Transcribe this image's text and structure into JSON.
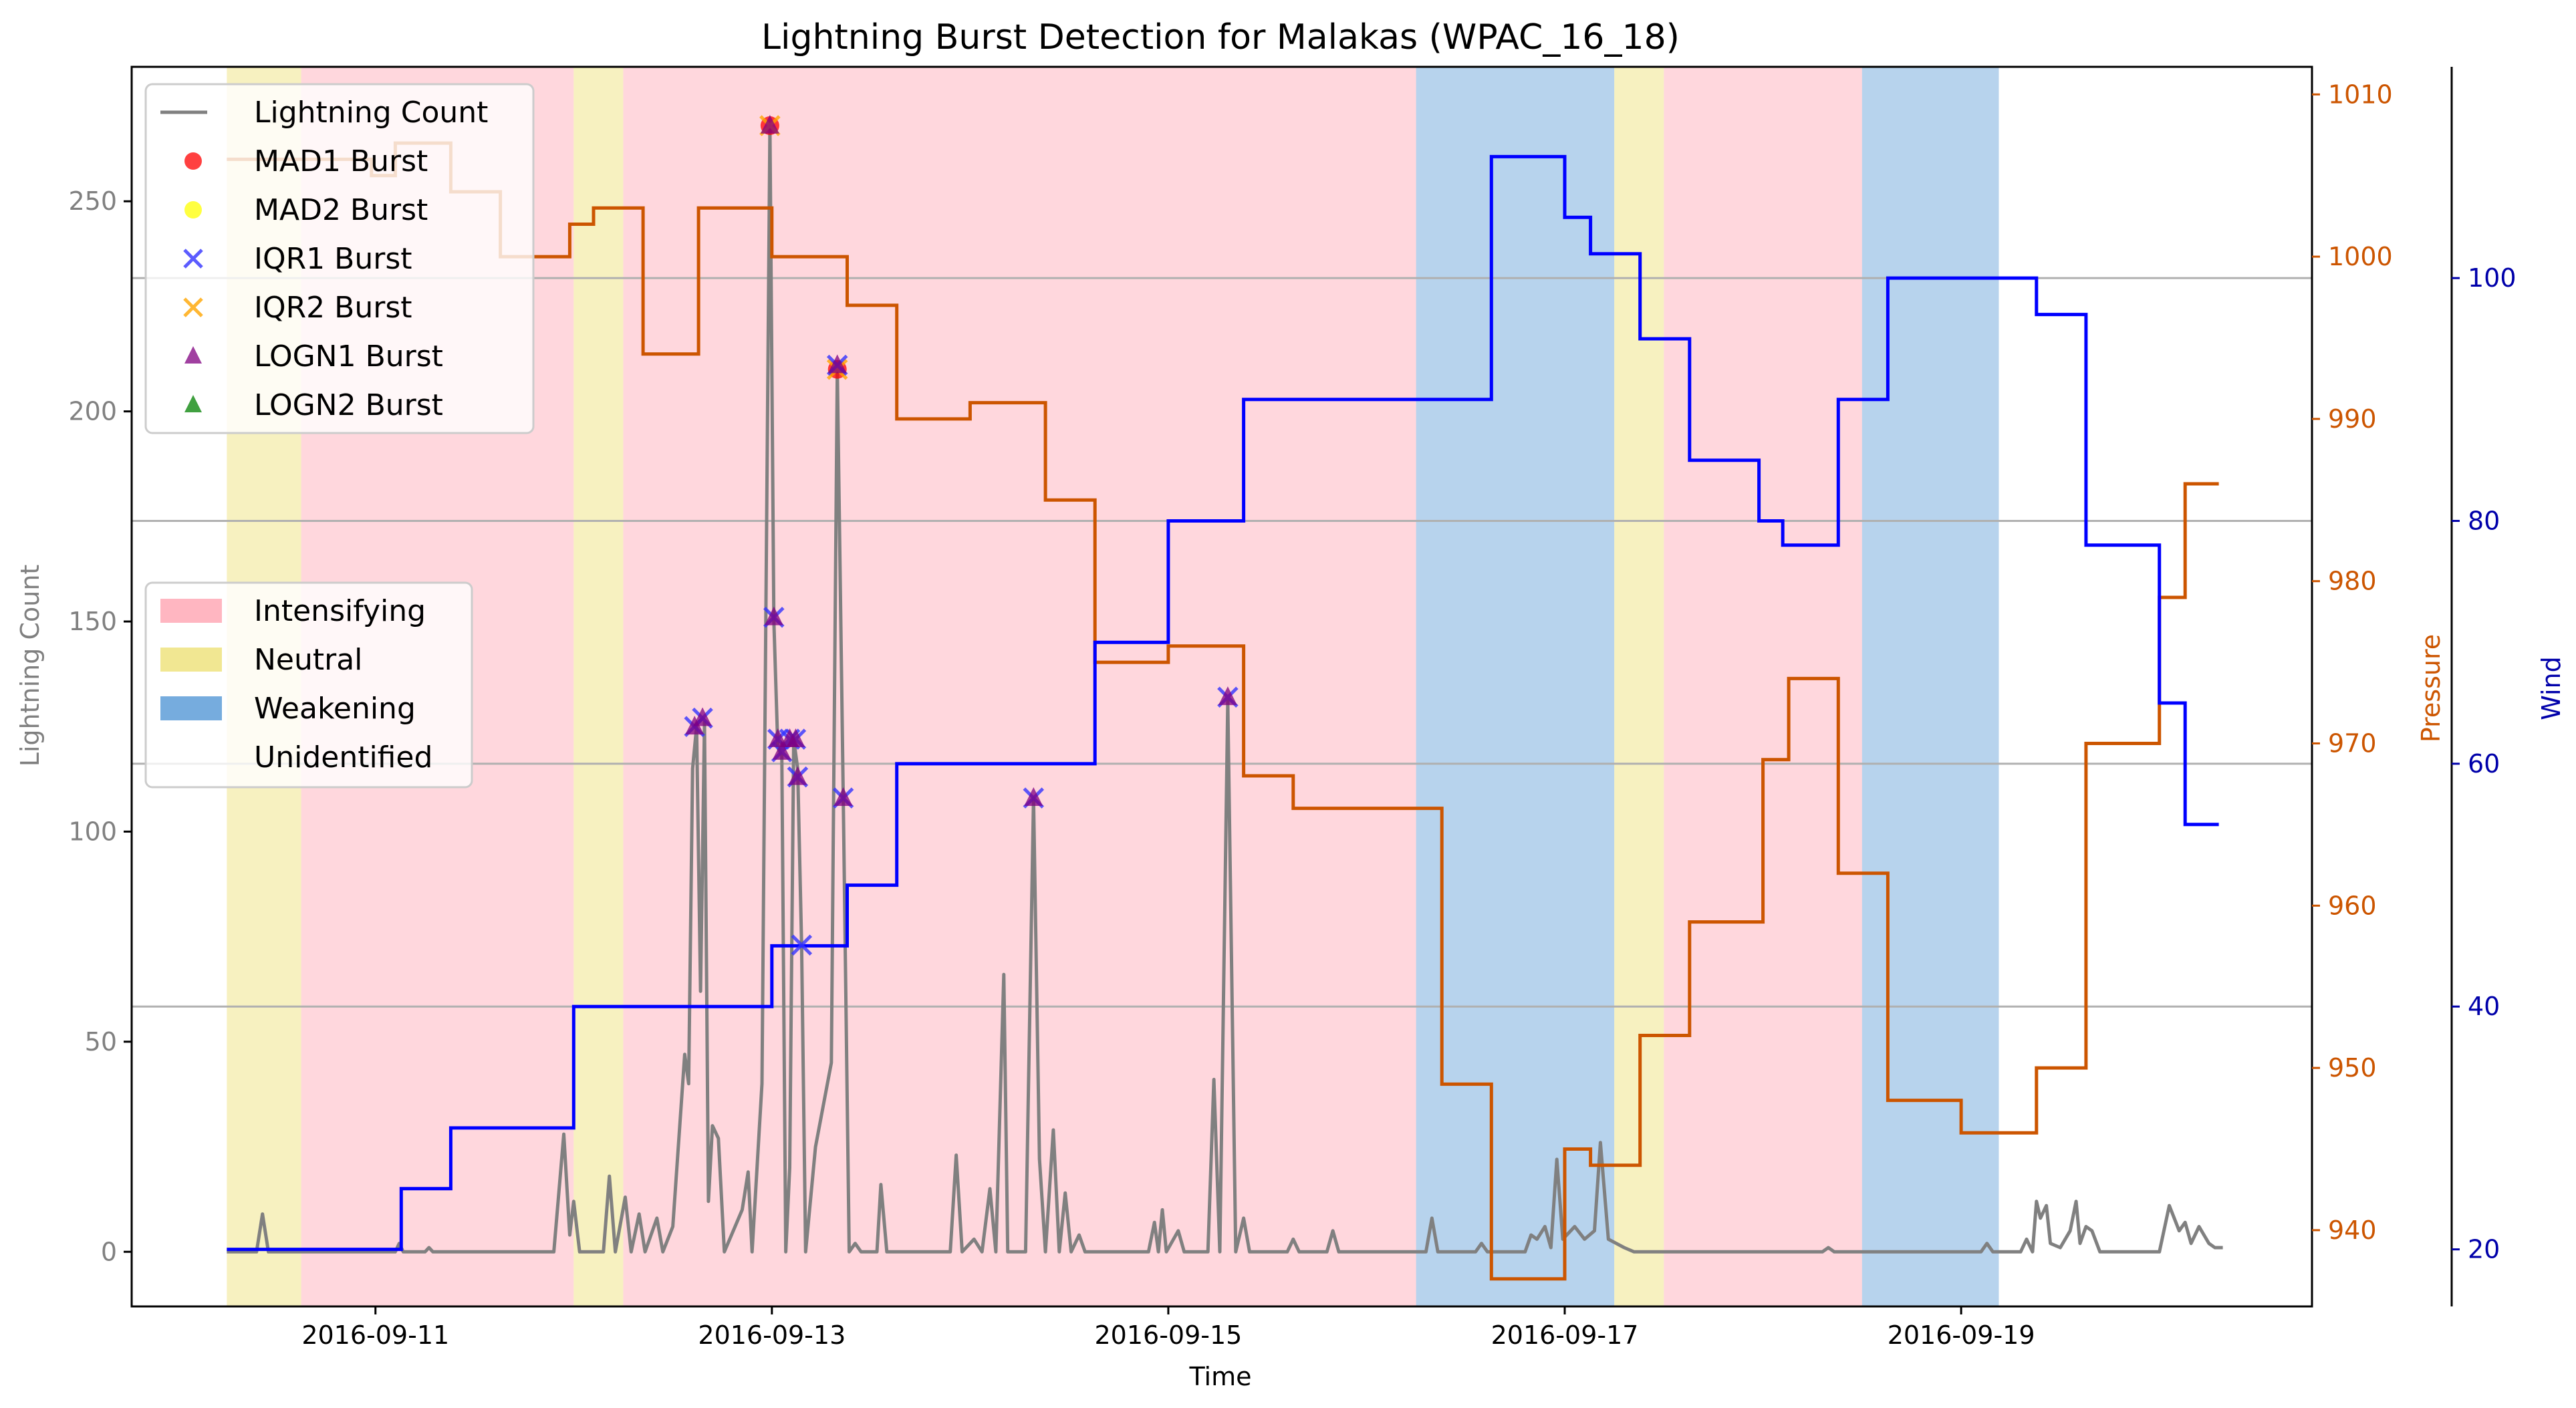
{
  "chart_data": {
    "type": "line",
    "title": "Lightning Burst Detection for Malakas (WPAC_16_18)",
    "xlabel": "Time",
    "ylabel_left": "Lightning Count",
    "ylabel_right1": "Pressure",
    "ylabel_right2": "Wind",
    "colors": {
      "lightning": "#808080",
      "pressure": "#cc5500",
      "wind": "#0000ff",
      "intensifying": "#ffb6c1",
      "neutral": "#f0e68c",
      "weakening": "#6fa8dc",
      "mad1": "#ff0000",
      "mad2": "#ffff00",
      "iqr1": "#3333ff",
      "iqr2": "#ffa500",
      "logn1": "#800080",
      "logn2": "#008000"
    },
    "x_ticks": [
      {
        "t": 1,
        "label": "2016-09-11"
      },
      {
        "t": 3,
        "label": "2016-09-13"
      },
      {
        "t": 5,
        "label": "2016-09-15"
      },
      {
        "t": 7,
        "label": "2016-09-17"
      },
      {
        "t": 9,
        "label": "2016-09-19"
      }
    ],
    "xlim": [
      -0.23,
      10.77
    ],
    "ylim_left": [
      -13,
      282
    ],
    "y_ticks_left": [
      0,
      50,
      100,
      150,
      200,
      250
    ],
    "ylim_pressure": [
      935.3,
      1011.7
    ],
    "y_ticks_pressure": [
      940,
      950,
      960,
      970,
      980,
      990,
      1000,
      1010
    ],
    "ylim_wind": [
      15.3,
      117.4
    ],
    "y_ticks_wind": [
      20,
      40,
      60,
      80,
      100
    ],
    "wind_gridlines": [
      40,
      60,
      80,
      100
    ],
    "legend_markers": {
      "placement": "upper left",
      "entries": [
        {
          "key": "line",
          "label": "Lightning Count"
        },
        {
          "key": "mad1",
          "label": "MAD1 Burst"
        },
        {
          "key": "mad2",
          "label": "MAD2 Burst"
        },
        {
          "key": "iqr1",
          "label": "IQR1 Burst"
        },
        {
          "key": "iqr2",
          "label": "IQR2 Burst"
        },
        {
          "key": "logn1",
          "label": "LOGN1 Burst"
        },
        {
          "key": "logn2",
          "label": "LOGN2 Burst"
        }
      ]
    },
    "legend_phases": {
      "placement": "center left",
      "entries": [
        {
          "key": "intensifying",
          "label": "Intensifying"
        },
        {
          "key": "neutral",
          "label": "Neutral"
        },
        {
          "key": "weakening",
          "label": "Weakening"
        },
        {
          "key": "none",
          "label": "Unidentified"
        }
      ]
    },
    "phases": [
      {
        "start": 0.25,
        "end": 0.625,
        "phase": "neutral"
      },
      {
        "start": 0.625,
        "end": 2.0,
        "phase": "intensifying"
      },
      {
        "start": 2.0,
        "end": 2.25,
        "phase": "neutral"
      },
      {
        "start": 2.25,
        "end": 6.25,
        "phase": "intensifying"
      },
      {
        "start": 6.25,
        "end": 7.25,
        "phase": "weakening"
      },
      {
        "start": 7.25,
        "end": 7.5,
        "phase": "neutral"
      },
      {
        "start": 7.5,
        "end": 8.5,
        "phase": "intensifying"
      },
      {
        "start": 8.5,
        "end": 9.19,
        "phase": "weakening"
      }
    ],
    "pressure": [
      [
        0.25,
        1006
      ],
      [
        0.98,
        1005
      ],
      [
        1.1,
        1007
      ],
      [
        1.38,
        1004
      ],
      [
        1.63,
        1000
      ],
      [
        1.98,
        1002
      ],
      [
        2.1,
        1003
      ],
      [
        2.35,
        994
      ],
      [
        2.63,
        1003
      ],
      [
        3.0,
        1000
      ],
      [
        3.38,
        997
      ],
      [
        3.63,
        990
      ],
      [
        4.0,
        991
      ],
      [
        4.38,
        985
      ],
      [
        4.63,
        975
      ],
      [
        5.0,
        976
      ],
      [
        5.38,
        968
      ],
      [
        5.63,
        966
      ],
      [
        6.38,
        949
      ],
      [
        6.63,
        937
      ],
      [
        7.0,
        945
      ],
      [
        7.13,
        944
      ],
      [
        7.38,
        952
      ],
      [
        7.63,
        959
      ],
      [
        8.0,
        969
      ],
      [
        8.13,
        974
      ],
      [
        8.38,
        962
      ],
      [
        8.63,
        948
      ],
      [
        9.0,
        946
      ],
      [
        9.38,
        950
      ],
      [
        9.63,
        970
      ],
      [
        10.0,
        979
      ],
      [
        10.13,
        986
      ],
      [
        10.3,
        986
      ]
    ],
    "wind": [
      [
        0.25,
        20
      ],
      [
        1.13,
        25
      ],
      [
        1.38,
        30
      ],
      [
        1.88,
        30
      ],
      [
        2.0,
        40
      ],
      [
        2.6,
        40
      ],
      [
        2.9,
        40
      ],
      [
        3.0,
        45
      ],
      [
        3.38,
        50
      ],
      [
        3.63,
        60
      ],
      [
        4.38,
        60
      ],
      [
        4.63,
        70
      ],
      [
        5.0,
        80
      ],
      [
        5.38,
        90
      ],
      [
        6.38,
        90
      ],
      [
        6.63,
        110
      ],
      [
        7.0,
        105
      ],
      [
        7.13,
        102
      ],
      [
        7.38,
        95
      ],
      [
        7.63,
        85
      ],
      [
        7.98,
        80
      ],
      [
        8.1,
        78
      ],
      [
        8.38,
        90
      ],
      [
        8.63,
        100
      ],
      [
        9.38,
        97
      ],
      [
        9.63,
        78
      ],
      [
        10.0,
        65
      ],
      [
        10.13,
        55
      ],
      [
        10.3,
        55
      ]
    ],
    "lightning": [
      [
        0.25,
        0
      ],
      [
        0.4,
        0
      ],
      [
        0.43,
        9
      ],
      [
        0.46,
        0
      ],
      [
        1.1,
        0
      ],
      [
        1.12,
        2
      ],
      [
        1.14,
        0
      ],
      [
        1.25,
        0
      ],
      [
        1.27,
        1
      ],
      [
        1.29,
        0
      ],
      [
        1.9,
        0
      ],
      [
        1.95,
        28
      ],
      [
        1.98,
        4
      ],
      [
        2.0,
        12
      ],
      [
        2.03,
        0
      ],
      [
        2.15,
        0
      ],
      [
        2.18,
        18
      ],
      [
        2.21,
        0
      ],
      [
        2.26,
        13
      ],
      [
        2.29,
        0
      ],
      [
        2.33,
        9
      ],
      [
        2.36,
        0
      ],
      [
        2.42,
        8
      ],
      [
        2.45,
        0
      ],
      [
        2.5,
        6
      ],
      [
        2.56,
        47
      ],
      [
        2.58,
        40
      ],
      [
        2.6,
        115
      ],
      [
        2.62,
        125
      ],
      [
        2.64,
        62
      ],
      [
        2.66,
        126
      ],
      [
        2.68,
        12
      ],
      [
        2.7,
        30
      ],
      [
        2.73,
        27
      ],
      [
        2.76,
        0
      ],
      [
        2.85,
        10
      ],
      [
        2.88,
        19
      ],
      [
        2.9,
        0
      ],
      [
        2.95,
        40
      ],
      [
        2.99,
        268
      ],
      [
        3.01,
        150
      ],
      [
        3.03,
        120
      ],
      [
        3.05,
        118
      ],
      [
        3.07,
        0
      ],
      [
        3.09,
        20
      ],
      [
        3.11,
        122
      ],
      [
        3.13,
        115
      ],
      [
        3.15,
        73
      ],
      [
        3.17,
        0
      ],
      [
        3.22,
        25
      ],
      [
        3.3,
        45
      ],
      [
        3.33,
        210
      ],
      [
        3.36,
        108
      ],
      [
        3.39,
        0
      ],
      [
        3.42,
        2
      ],
      [
        3.45,
        0
      ],
      [
        3.53,
        0
      ],
      [
        3.55,
        16
      ],
      [
        3.58,
        0
      ],
      [
        3.9,
        0
      ],
      [
        3.93,
        23
      ],
      [
        3.96,
        0
      ],
      [
        4.02,
        3
      ],
      [
        4.06,
        0
      ],
      [
        4.1,
        15
      ],
      [
        4.13,
        0
      ],
      [
        4.17,
        66
      ],
      [
        4.19,
        0
      ],
      [
        4.28,
        0
      ],
      [
        4.32,
        108
      ],
      [
        4.35,
        22
      ],
      [
        4.38,
        0
      ],
      [
        4.42,
        29
      ],
      [
        4.45,
        0
      ],
      [
        4.48,
        14
      ],
      [
        4.51,
        0
      ],
      [
        4.55,
        4
      ],
      [
        4.58,
        0
      ],
      [
        4.9,
        0
      ],
      [
        4.93,
        7
      ],
      [
        4.95,
        0
      ],
      [
        4.97,
        10
      ],
      [
        4.99,
        0
      ],
      [
        5.05,
        5
      ],
      [
        5.08,
        0
      ],
      [
        5.2,
        0
      ],
      [
        5.23,
        41
      ],
      [
        5.26,
        0
      ],
      [
        5.3,
        131
      ],
      [
        5.34,
        0
      ],
      [
        5.38,
        8
      ],
      [
        5.41,
        0
      ],
      [
        5.6,
        0
      ],
      [
        5.63,
        3
      ],
      [
        5.66,
        0
      ],
      [
        5.8,
        0
      ],
      [
        5.83,
        5
      ],
      [
        5.86,
        0
      ],
      [
        6.3,
        0
      ],
      [
        6.33,
        8
      ],
      [
        6.36,
        0
      ],
      [
        6.55,
        0
      ],
      [
        6.58,
        2
      ],
      [
        6.61,
        0
      ],
      [
        6.8,
        0
      ],
      [
        6.83,
        4
      ],
      [
        6.86,
        3
      ],
      [
        6.9,
        6
      ],
      [
        6.93,
        1
      ],
      [
        6.96,
        22
      ],
      [
        6.99,
        3
      ],
      [
        7.05,
        6
      ],
      [
        7.1,
        3
      ],
      [
        7.15,
        5
      ],
      [
        7.18,
        26
      ],
      [
        7.22,
        3
      ],
      [
        7.3,
        1
      ],
      [
        7.35,
        0
      ],
      [
        8.3,
        0
      ],
      [
        8.33,
        1
      ],
      [
        8.36,
        0
      ],
      [
        9.1,
        0
      ],
      [
        9.13,
        2
      ],
      [
        9.16,
        0
      ],
      [
        9.3,
        0
      ],
      [
        9.33,
        3
      ],
      [
        9.36,
        0
      ],
      [
        9.38,
        12
      ],
      [
        9.4,
        8
      ],
      [
        9.43,
        11
      ],
      [
        9.45,
        2
      ],
      [
        9.5,
        1
      ],
      [
        9.55,
        5
      ],
      [
        9.58,
        12
      ],
      [
        9.6,
        2
      ],
      [
        9.63,
        6
      ],
      [
        9.66,
        5
      ],
      [
        9.7,
        0
      ],
      [
        10.0,
        0
      ],
      [
        10.05,
        11
      ],
      [
        10.1,
        5
      ],
      [
        10.13,
        7
      ],
      [
        10.16,
        2
      ],
      [
        10.2,
        6
      ],
      [
        10.25,
        2
      ],
      [
        10.28,
        1
      ],
      [
        10.32,
        1
      ]
    ],
    "bursts": {
      "mad1": [
        [
          2.99,
          268
        ],
        [
          3.33,
          210
        ]
      ],
      "mad2": [],
      "iqr1": [
        [
          2.61,
          125
        ],
        [
          2.65,
          127
        ],
        [
          3.01,
          151
        ],
        [
          3.03,
          122
        ],
        [
          3.05,
          119
        ],
        [
          3.09,
          122
        ],
        [
          3.12,
          122
        ],
        [
          3.13,
          113
        ],
        [
          3.15,
          73
        ],
        [
          3.33,
          211
        ],
        [
          3.36,
          108
        ],
        [
          4.32,
          108
        ],
        [
          5.3,
          132
        ]
      ],
      "iqr2": [
        [
          2.99,
          268
        ],
        [
          3.33,
          210
        ]
      ],
      "logn1": [
        [
          2.61,
          125
        ],
        [
          2.65,
          127
        ],
        [
          2.99,
          268
        ],
        [
          3.01,
          151
        ],
        [
          3.03,
          122
        ],
        [
          3.05,
          119
        ],
        [
          3.09,
          122
        ],
        [
          3.12,
          122
        ],
        [
          3.13,
          113
        ],
        [
          3.33,
          211
        ],
        [
          3.36,
          108
        ],
        [
          4.32,
          108
        ],
        [
          5.3,
          132
        ]
      ],
      "logn2": []
    }
  }
}
